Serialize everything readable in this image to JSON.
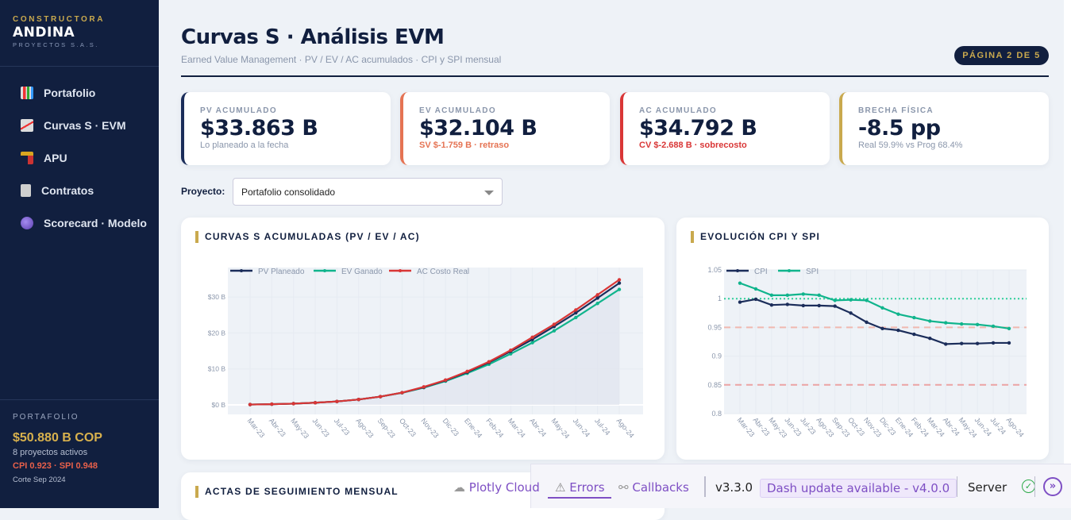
{
  "sidebar": {
    "brand_top": "CONSTRUCTORA",
    "brand_name": "ANDINA",
    "brand_sub": "PROYECTOS S.A.S.",
    "items": [
      {
        "label": "Portafolio",
        "icon": "bar-chart-icon"
      },
      {
        "label": "Curvas S · EVM",
        "icon": "chart-increasing-icon"
      },
      {
        "label": "APU",
        "icon": "construction-crane-icon"
      },
      {
        "label": "Contratos",
        "icon": "clipboard-icon"
      },
      {
        "label": "Scorecard · Modelo",
        "icon": "crystal-ball-icon"
      }
    ],
    "portfolio": {
      "label": "PORTAFOLIO",
      "value": "$50.880 B COP",
      "projects": "8 proyectos activos",
      "indices": "CPI 0.923 · SPI 0.948",
      "cutoff": "Corte Sep 2024"
    }
  },
  "header": {
    "title": "Curvas S · Análisis EVM",
    "subtitle": "Earned Value Management · PV / EV / AC acumulados · CPI y SPI mensual",
    "page_badge": "PÁGINA 2 DE 5"
  },
  "kpis": [
    {
      "label": "PV ACUMULADO",
      "value": "$33.863 B",
      "sub": "Lo planeado a la fecha",
      "color": "#1b2d5a",
      "sub_color": "#8a96ab"
    },
    {
      "label": "EV ACUMULADO",
      "value": "$32.104 B",
      "sub": "SV $-1.759 B · retraso",
      "color": "#e57353",
      "sub_color": "#e57353"
    },
    {
      "label": "AC ACUMULADO",
      "value": "$34.792 B",
      "sub": "CV $-2.688 B · sobrecosto",
      "color": "#d93636",
      "sub_color": "#d93636"
    },
    {
      "label": "BRECHA FÍSICA",
      "value": "-8.5 pp",
      "sub": "Real 59.9% vs Prog 68.4%",
      "color": "#c9a94e",
      "sub_color": "#8a96ab"
    }
  ],
  "filter": {
    "label": "Proyecto:",
    "value": "Portafolio consolidado"
  },
  "panels": {
    "scurve_title": "CURVAS S ACUMULADAS (PV / EV / AC)",
    "cpi_title": "EVOLUCIÓN CPI Y SPI",
    "actas_title": "ACTAS DE SEGUIMIENTO MENSUAL"
  },
  "chart_data": [
    {
      "type": "line",
      "categories": [
        "Mar-23",
        "Abr-23",
        "May-23",
        "Jun-23",
        "Jul-23",
        "Ago-23",
        "Sep-23",
        "Oct-23",
        "Nov-23",
        "Dic-23",
        "Ene-24",
        "Feb-24",
        "Mar-24",
        "Abr-24",
        "May-24",
        "Jun-24",
        "Jul-24",
        "Ago-24"
      ],
      "yticks": [
        "$0 B",
        "$10 B",
        "$20 B",
        "$30 B"
      ],
      "ylim": [
        -2,
        37
      ],
      "legend": "top-left",
      "series": [
        {
          "name": "PV Planeado",
          "color": "#1b2d5a",
          "values": [
            0.1,
            0.2,
            0.35,
            0.6,
            0.95,
            1.5,
            2.3,
            3.4,
            4.9,
            6.8,
            9.1,
            11.8,
            14.9,
            18.2,
            21.8,
            25.6,
            29.7,
            33.863
          ]
        },
        {
          "name": "EV Ganado",
          "color": "#10b48c",
          "values": [
            0.1,
            0.2,
            0.35,
            0.6,
            0.95,
            1.5,
            2.3,
            3.35,
            4.8,
            6.6,
            8.8,
            11.3,
            14.2,
            17.3,
            20.6,
            24.3,
            28.2,
            32.104
          ]
        },
        {
          "name": "AC Costo Real",
          "color": "#d93636",
          "values": [
            0.1,
            0.2,
            0.35,
            0.6,
            0.95,
            1.5,
            2.3,
            3.4,
            5.0,
            6.9,
            9.3,
            12.0,
            15.2,
            18.8,
            22.4,
            26.4,
            30.6,
            34.792
          ]
        }
      ]
    },
    {
      "type": "line",
      "categories": [
        "Mar-23",
        "Abr-23",
        "May-23",
        "Jun-23",
        "Jul-23",
        "Ago-23",
        "Sep-23",
        "Oct-23",
        "Nov-23",
        "Dic-23",
        "Ene-24",
        "Feb-24",
        "Mar-24",
        "Abr-24",
        "May-24",
        "Jun-24",
        "Jul-24",
        "Ago-24"
      ],
      "yticks": [
        "0.8",
        "0.85",
        "0.9",
        "0.95",
        "1",
        "1.05"
      ],
      "ylim": [
        0.8,
        1.05
      ],
      "legend": "top-left",
      "reference_lines": [
        {
          "y": 1.0,
          "style": "dotted",
          "color": "#2fcf9a"
        },
        {
          "y": 0.95,
          "style": "dashed",
          "color": "#f0b8b0"
        },
        {
          "y": 0.85,
          "style": "dashed",
          "color": "#eba3a3"
        }
      ],
      "series": [
        {
          "name": "CPI",
          "color": "#1b2d5a",
          "values": [
            0.994,
            0.999,
            0.989,
            0.99,
            0.988,
            0.988,
            0.987,
            0.975,
            0.959,
            0.948,
            0.945,
            0.938,
            0.931,
            0.921,
            0.922,
            0.922,
            0.923,
            0.923
          ]
        },
        {
          "name": "SPI",
          "color": "#10b48c",
          "values": [
            1.027,
            1.017,
            1.006,
            1.006,
            1.008,
            1.006,
            0.997,
            0.998,
            0.997,
            0.984,
            0.973,
            0.967,
            0.961,
            0.958,
            0.956,
            0.955,
            0.952,
            0.948
          ]
        }
      ]
    }
  ],
  "devtools": {
    "cloud": "Plotly Cloud",
    "errors": "Errors",
    "callbacks": "Callbacks",
    "version": "v3.3.0",
    "update": "Dash update available - v4.0.0",
    "server": "Server"
  }
}
